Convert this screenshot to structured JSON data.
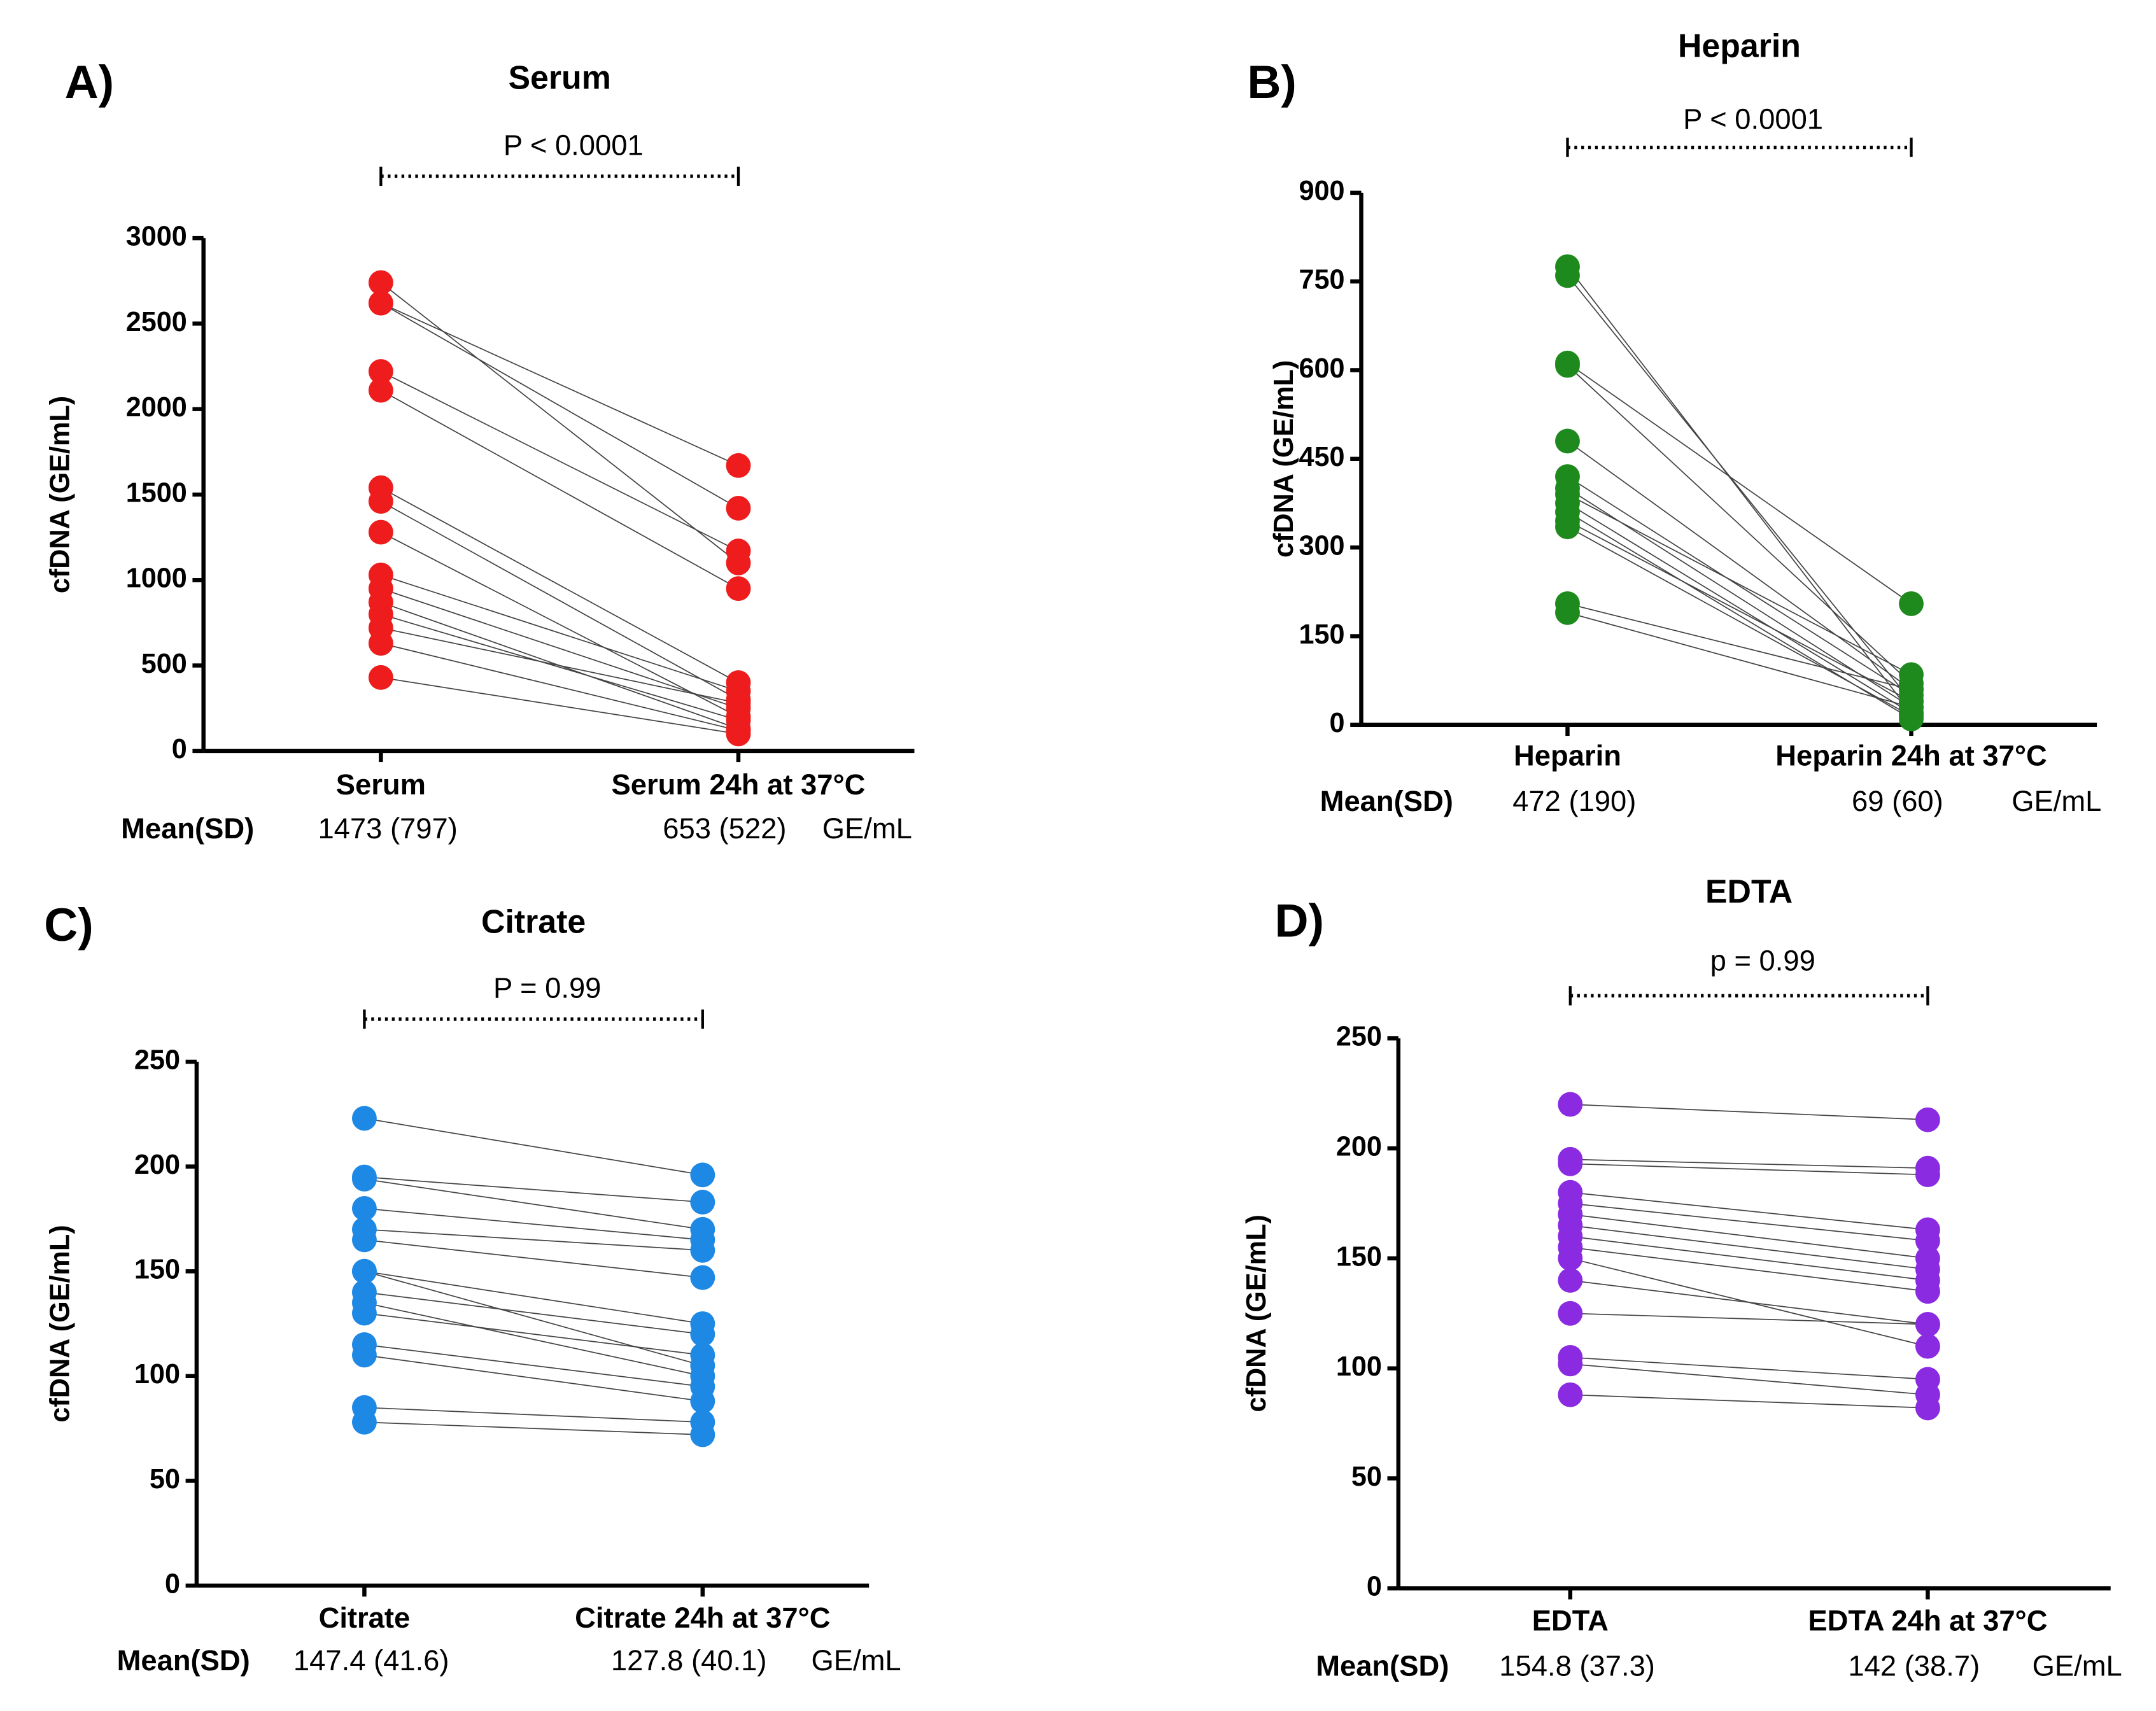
{
  "chart_data": [
    {
      "type": "paired",
      "panel": "A)",
      "title": "Serum",
      "categories": [
        "Serum",
        "Serum 24h at 37°C"
      ],
      "ylabel": "cfDNA (GE/mL)",
      "annotation": "P < 0.0001",
      "mean_label": "Mean(SD)",
      "mean_values": [
        "1473 (797)",
        "653 (522)"
      ],
      "unit": "GE/mL",
      "color": "#ee1c1c",
      "ylim": [
        0,
        3000
      ],
      "yticks": [
        0,
        500,
        1000,
        1500,
        2000,
        2500,
        3000
      ],
      "pairs": [
        [
          2740,
          1100
        ],
        [
          2620,
          1670
        ],
        [
          2620,
          1420
        ],
        [
          2220,
          1170
        ],
        [
          2110,
          950
        ],
        [
          1540,
          400
        ],
        [
          1460,
          300
        ],
        [
          1280,
          200
        ],
        [
          1030,
          350
        ],
        [
          950,
          250
        ],
        [
          870,
          130
        ],
        [
          800,
          180
        ],
        [
          720,
          280
        ],
        [
          630,
          120
        ],
        [
          430,
          100
        ]
      ]
    },
    {
      "type": "paired",
      "panel": "B)",
      "title": "Heparin",
      "categories": [
        "Heparin",
        "Heparin 24h at 37°C"
      ],
      "ylabel": "cfDNA (GE/mL)",
      "annotation": "P < 0.0001",
      "mean_label": "Mean(SD)",
      "mean_values": [
        "472 (190)",
        "69 (60)"
      ],
      "unit": "GE/mL",
      "color": "#1e8a1e",
      "ylim": [
        0,
        900
      ],
      "yticks": [
        0,
        150,
        300,
        450,
        600,
        750,
        900
      ],
      "pairs": [
        [
          775,
          20
        ],
        [
          760,
          40
        ],
        [
          612,
          205
        ],
        [
          608,
          70
        ],
        [
          480,
          60
        ],
        [
          420,
          50
        ],
        [
          400,
          30
        ],
        [
          390,
          85
        ],
        [
          375,
          20
        ],
        [
          360,
          10
        ],
        [
          345,
          40
        ],
        [
          335,
          15
        ],
        [
          205,
          60
        ],
        [
          190,
          30
        ]
      ]
    },
    {
      "type": "paired",
      "panel": "C)",
      "title": "Citrate",
      "categories": [
        "Citrate",
        "Citrate 24h at 37°C"
      ],
      "ylabel": "cfDNA (GE/mL)",
      "annotation": "P =  0.99",
      "mean_label": "Mean(SD)",
      "mean_values": [
        "147.4 (41.6)",
        "127.8 (40.1)"
      ],
      "unit": "GE/mL",
      "color": "#1e88e5",
      "ylim": [
        0,
        250
      ],
      "yticks": [
        0,
        50,
        100,
        150,
        200,
        250
      ],
      "pairs": [
        [
          223,
          196
        ],
        [
          195,
          183
        ],
        [
          194,
          170
        ],
        [
          180,
          165
        ],
        [
          170,
          160
        ],
        [
          165,
          147
        ],
        [
          150,
          125
        ],
        [
          150,
          105
        ],
        [
          140,
          120
        ],
        [
          135,
          100
        ],
        [
          130,
          110
        ],
        [
          115,
          95
        ],
        [
          110,
          88
        ],
        [
          85,
          78
        ],
        [
          78,
          72
        ]
      ]
    },
    {
      "type": "paired",
      "panel": "D)",
      "title": "EDTA",
      "categories": [
        "EDTA",
        "EDTA 24h at 37°C"
      ],
      "ylabel": "cfDNA (GE/mL)",
      "annotation": "p = 0.99",
      "mean_label": "Mean(SD)",
      "mean_values": [
        "154.8 (37.3)",
        "142 (38.7)"
      ],
      "unit": "GE/mL",
      "color": "#8a2be2",
      "ylim": [
        0,
        250
      ],
      "yticks": [
        0,
        50,
        100,
        150,
        200,
        250
      ],
      "pairs": [
        [
          220,
          213
        ],
        [
          195,
          191
        ],
        [
          193,
          188
        ],
        [
          180,
          163
        ],
        [
          175,
          158
        ],
        [
          170,
          150
        ],
        [
          165,
          145
        ],
        [
          160,
          140
        ],
        [
          155,
          135
        ],
        [
          150,
          110
        ],
        [
          140,
          120
        ],
        [
          125,
          120
        ],
        [
          105,
          95
        ],
        [
          102,
          88
        ],
        [
          88,
          82
        ]
      ]
    }
  ]
}
